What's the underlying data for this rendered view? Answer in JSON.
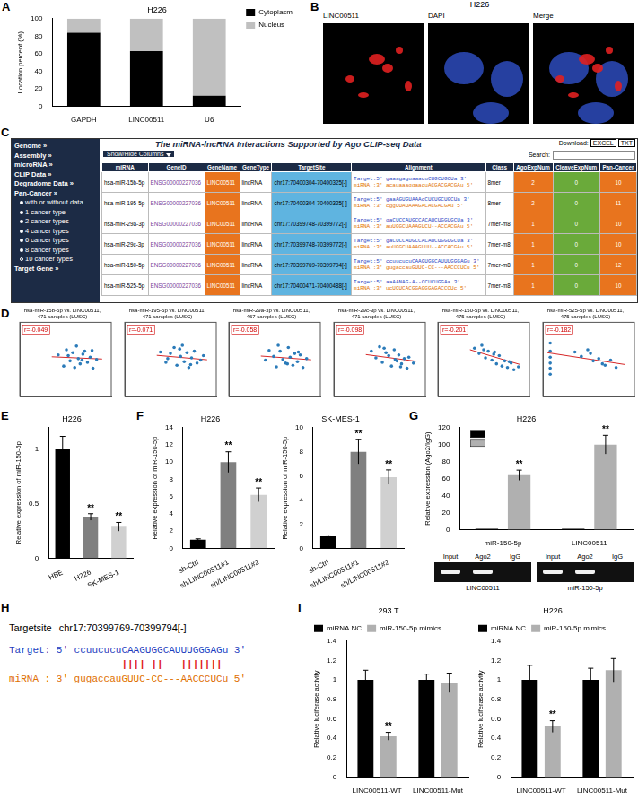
{
  "chart_data": [
    {
      "panel": "A",
      "type": "bar",
      "title": "H226",
      "stacked": true,
      "categories": [
        "GAPDH",
        "LINC00511",
        "U6"
      ],
      "series": [
        {
          "name": "Cytoplasm",
          "color": "#000000",
          "values": [
            84,
            63,
            12
          ]
        },
        {
          "name": "Nucleus",
          "color": "#c0c0c0",
          "values": [
            16,
            37,
            88
          ]
        }
      ],
      "y_label": "Location percent (%)",
      "ylim": [
        0,
        100
      ],
      "yticks": [
        0,
        20,
        40,
        60,
        80,
        100
      ],
      "legend": "right",
      "grid": false
    },
    {
      "panel": "D",
      "type": "scatter",
      "title": "hsa-miR-15b-5p vs. LINC00511, 471 samples (LUSC)",
      "annotation": "r=-0.049",
      "color": "#2b7bb9",
      "x": [
        4.2,
        4.8,
        5.1,
        5.5,
        5.8,
        6.0,
        6.2,
        6.4,
        6.6,
        6.9,
        7.1,
        7.4,
        7.7,
        8.0,
        8.4,
        5.3,
        6.8,
        7.9
      ],
      "y": [
        5.6,
        4.1,
        6.3,
        4.8,
        5.9,
        3.9,
        6.8,
        5.1,
        4.4,
        5.7,
        6.1,
        4.6,
        5.3,
        3.8,
        5.0,
        5.5,
        4.9,
        6.2
      ],
      "fit": {
        "color": "#d62728",
        "x": [
          3.5,
          9
        ],
        "y": [
          5.35,
          5.05
        ]
      },
      "xlim": [
        0,
        10
      ],
      "ylim": [
        0,
        10
      ],
      "tick_labels": false,
      "grid": false
    },
    {
      "type": "scatter",
      "title": "hsa-miR-195-5p vs. LINC00511, 471 samples (LUSC)",
      "annotation": "r=-0.071",
      "color": "#2b7bb9",
      "x": [
        3.9,
        4.5,
        5.0,
        5.4,
        5.7,
        6.1,
        6.3,
        6.5,
        6.8,
        7.0,
        7.3,
        7.6,
        7.9,
        8.3,
        4.7,
        6.0,
        7.2,
        8.6
      ],
      "y": [
        6.0,
        4.6,
        5.8,
        6.6,
        4.2,
        5.4,
        6.9,
        4.7,
        5.9,
        3.9,
        5.2,
        6.1,
        4.5,
        4.9,
        5.1,
        6.4,
        4.3,
        5.5
      ],
      "fit": {
        "color": "#d62728",
        "x": [
          3.5,
          9
        ],
        "y": [
          5.55,
          4.95
        ]
      },
      "xlim": [
        0,
        10
      ],
      "ylim": [
        0,
        10
      ],
      "tick_labels": false,
      "grid": false
    },
    {
      "type": "scatter",
      "title": "hsa-miR-29a-3p vs. LINC00511, 467 samples (LUSC)",
      "annotation": "r=-0.058",
      "color": "#2b7bb9",
      "x": [
        4.0,
        4.4,
        4.9,
        5.2,
        5.6,
        5.9,
        6.2,
        6.5,
        6.7,
        7.0,
        7.2,
        7.5,
        7.8,
        8.1,
        8.5,
        5.4,
        6.4,
        7.6
      ],
      "y": [
        4.9,
        6.2,
        5.4,
        4.0,
        6.1,
        5.0,
        4.5,
        6.6,
        5.3,
        4.2,
        5.8,
        4.7,
        5.6,
        3.9,
        5.1,
        6.9,
        4.4,
        6.0
      ],
      "fit": {
        "color": "#d62728",
        "x": [
          3.5,
          9
        ],
        "y": [
          5.45,
          4.95
        ]
      },
      "xlim": [
        0,
        10
      ],
      "ylim": [
        0,
        10
      ],
      "tick_labels": false,
      "grid": false
    },
    {
      "type": "scatter",
      "title": "hsa-miR-29c-3p vs. LINC00511, 471 samples (LUSC)",
      "annotation": "r=-0.098",
      "color": "#2b7bb9",
      "x": [
        4.1,
        4.6,
        5.0,
        5.3,
        5.7,
        6.0,
        6.3,
        6.6,
        6.9,
        7.1,
        7.4,
        7.7,
        8.0,
        8.2,
        8.7,
        5.5,
        6.7,
        7.3
      ],
      "y": [
        6.1,
        5.2,
        6.7,
        4.6,
        5.9,
        5.5,
        4.1,
        6.3,
        4.8,
        5.6,
        4.4,
        5.1,
        3.8,
        5.3,
        4.5,
        6.5,
        5.0,
        4.0
      ],
      "fit": {
        "color": "#d62728",
        "x": [
          3.5,
          9
        ],
        "y": [
          5.65,
          4.75
        ]
      },
      "xlim": [
        0,
        10
      ],
      "ylim": [
        0,
        10
      ],
      "tick_labels": false,
      "grid": false
    },
    {
      "type": "scatter",
      "title": "hsa-miR-150-5p vs. LINC00511, 475 samples (LUSC)",
      "annotation": "r=-0.201",
      "color": "#2b7bb9",
      "x": [
        4.0,
        4.5,
        4.8,
        5.2,
        5.5,
        5.9,
        6.1,
        6.4,
        6.7,
        7.0,
        7.3,
        7.6,
        8.0,
        8.3,
        8.8,
        5.0,
        6.2,
        7.8
      ],
      "y": [
        6.5,
        5.8,
        6.9,
        5.2,
        6.1,
        4.9,
        5.7,
        4.4,
        5.5,
        4.1,
        4.8,
        3.9,
        4.5,
        3.6,
        4.0,
        6.3,
        6.0,
        4.7
      ],
      "fit": {
        "color": "#d62728",
        "x": [
          3.5,
          9
        ],
        "y": [
          6.3,
          4.3
        ]
      },
      "xlim": [
        0,
        10
      ],
      "ylim": [
        0,
        10
      ],
      "tick_labels": false,
      "grid": false
    },
    {
      "type": "scatter",
      "title": "hsa-miR-525-5p vs. LINC00511, 475 samples (LUSC)",
      "annotation": "r=-0.182",
      "color": "#2b7bb9",
      "x": [
        0.8,
        0.8,
        0.8,
        0.8,
        0.8,
        0.8,
        3.5,
        4.2,
        4.9,
        5.5,
        6.1,
        6.8,
        7.4,
        8.0,
        5.2,
        6.5
      ],
      "y": [
        7.2,
        6.1,
        5.3,
        4.5,
        3.8,
        3.0,
        6.0,
        5.4,
        6.3,
        4.8,
        5.1,
        4.2,
        4.9,
        3.9,
        5.8,
        4.4
      ],
      "fit": {
        "color": "#d62728",
        "x": [
          0.5,
          9
        ],
        "y": [
          5.9,
          4.3
        ]
      },
      "xlim": [
        0,
        10
      ],
      "ylim": [
        0,
        10
      ],
      "tick_labels": false,
      "grid": false
    },
    {
      "panel": "E",
      "type": "bar",
      "title": "H226",
      "categories": [
        "HBE",
        "H226",
        "SK-MES-1"
      ],
      "values": [
        1,
        0.38,
        0.29
      ],
      "errors": [
        0.12,
        0.03,
        0.04
      ],
      "significance": [
        null,
        "**",
        "**"
      ],
      "colors": [
        "#000000",
        "#808080",
        "#d0d0d0"
      ],
      "y_label": "Relative expression of miR-150-5p",
      "ylim": [
        0,
        1.2
      ],
      "yticks": [
        0,
        0.5,
        1
      ],
      "grid": false
    },
    {
      "panel": "F",
      "type": "bar",
      "title": "H226",
      "categories": [
        "sh-Ctrl",
        "sh/LINC00511#1",
        "sh/LINC00511#2"
      ],
      "values": [
        1,
        10,
        6.2
      ],
      "errors": [
        0.1,
        1.2,
        0.8
      ],
      "significance": [
        null,
        "**",
        "**"
      ],
      "colors": [
        "#000000",
        "#808080",
        "#d0d0d0"
      ],
      "y_label": "Relative expression of miR-150-5p",
      "ylim": [
        0,
        14
      ],
      "yticks": [
        0,
        2,
        4,
        6,
        8,
        10,
        12,
        14
      ],
      "grid": false
    },
    {
      "type": "bar",
      "title": "SK-MES-1",
      "categories": [
        "sh-Ctrl",
        "sh/LINC00511#1",
        "sh/LINC00511#2"
      ],
      "values": [
        1,
        8,
        5.9
      ],
      "errors": [
        0.1,
        1,
        0.6
      ],
      "significance": [
        null,
        "**",
        "**"
      ],
      "colors": [
        "#000000",
        "#808080",
        "#d0d0d0"
      ],
      "y_label": "Relative expression of miR-150-5p",
      "ylim": [
        0,
        10
      ],
      "yticks": [
        0,
        2,
        4,
        6,
        8,
        10
      ],
      "grid": false
    },
    {
      "panel": "G",
      "type": "bar",
      "title": "H226",
      "categories": [
        "miR-150-5p",
        "LINC00511"
      ],
      "series": [
        {
          "color": "#000000",
          "values": [
            1,
            1
          ]
        },
        {
          "color": "#b0b0b0",
          "values": [
            64,
            100
          ],
          "errors": [
            6,
            11
          ],
          "significance": [
            "**",
            "**"
          ]
        }
      ],
      "y_label": "Relative expression (Ago2/IgG)",
      "ylim": [
        0,
        120
      ],
      "yticks": [
        0,
        20,
        40,
        60,
        80,
        100,
        120
      ],
      "legend": "top",
      "grid": false
    },
    {
      "panel": "I",
      "type": "bar",
      "title": "293 T",
      "categories": [
        "LINC00511-WT",
        "LINC00511-Mut"
      ],
      "series": [
        {
          "name": "miRNA NC",
          "color": "#000000",
          "values": [
            1,
            1
          ],
          "errors": [
            0.1,
            0.06
          ]
        },
        {
          "name": "miR-150-5p mimics",
          "color": "#b0b0b0",
          "values": [
            0.42,
            0.97
          ],
          "errors": [
            0.04,
            0.1
          ],
          "significance": [
            "**",
            null
          ]
        }
      ],
      "y_label": "Relative luciferase activity",
      "ylim": [
        0,
        1.4
      ],
      "yticks": [
        0,
        0.2,
        0.4,
        0.6,
        0.8,
        1,
        1.2,
        1.4
      ],
      "legend": "top",
      "grid": false
    },
    {
      "type": "bar",
      "title": "H226",
      "categories": [
        "LINC00511-WT",
        "LINC00511-Mut"
      ],
      "series": [
        {
          "name": "miRNA NC",
          "color": "#000000",
          "values": [
            1,
            1
          ],
          "errors": [
            0.15,
            0.12
          ]
        },
        {
          "name": "miR-150-5p mimics",
          "color": "#b0b0b0",
          "values": [
            0.52,
            1.1
          ],
          "errors": [
            0.06,
            0.12
          ],
          "significance": [
            "**",
            null
          ]
        }
      ],
      "y_label": "Relative luciferase activity",
      "ylim": [
        0,
        1.4
      ],
      "yticks": [
        0,
        0.2,
        0.4,
        0.6,
        0.8,
        1,
        1.2,
        1.4
      ],
      "legend": "top",
      "grid": false
    }
  ],
  "panel_b": {
    "panel": "B",
    "title": "H226",
    "images": [
      "LINC00511",
      "DAPI",
      "Merge"
    ]
  },
  "panel_c": {
    "panel": "C",
    "sidebar": {
      "items": [
        "Genome »",
        "Assembly »",
        "microRNA »",
        "CLIP Data »",
        "Degradome Data »",
        "Pan-Cancer »"
      ],
      "sub": [
        "with or without data",
        "1 cancer type",
        "2 cancer types",
        "4 cancer types",
        "6 cancer types",
        "8 cancer types",
        "10 cancer types"
      ],
      "last": "Target Gene »"
    },
    "title": "The miRNA-lncRNA Interactions Supported by Ago CLIP-seq Data",
    "download": "Download:",
    "formats": [
      "EXCEL",
      "TXT"
    ],
    "show_hide": "Show/Hide Columns",
    "search": "Search:",
    "columns": [
      "miRNA",
      "GeneID",
      "GeneName",
      "GeneType",
      "TargetSite",
      "Alignment",
      "Class",
      "AgoExpNum",
      "CleaveExpNum",
      "Pan-Cancer"
    ],
    "rows": [
      [
        "hsa-miR-15b-5p",
        "ENSG00000227036",
        "LINC00511",
        "lincRNA",
        "chr17:70400304-70400325[-]",
        [
          "Target:5' gaaagaguaaacuCUGCUGCUa 3'",
          "miRNA :3' acauaaaggaacuACGACGACGAu 5'"
        ],
        "8mer",
        2,
        0,
        10
      ],
      [
        "hsa-miR-195-5p",
        "ENSG00000227036",
        "LINC00511",
        "lincRNA",
        "chr17:70400304-70400325[-]",
        [
          "Target:5' gaaAGUGUAAAcCUCUGCUGCUa 3'",
          "miRNA :3' cggUUAUAAAGACACGACGAu 5'"
        ],
        "8mer",
        2,
        0,
        11
      ],
      [
        "hsa-miR-29a-3p",
        "ENSG00000227036",
        "LINC00511",
        "lincRNA",
        "chr17:70399748-70399772[-]",
        [
          "Target:5' gaCUCCAUGCCACAUCUGGUGCUa 3'",
          "miRNA :3' auUGGCUAAAGUCU--ACCACGAu 5'"
        ],
        "7mer-m8",
        1,
        0,
        10
      ],
      [
        "hsa-miR-29c-3p",
        "ENSG00000227036",
        "LINC00511",
        "lincRNA",
        "chr17:70399748-70399772[-]",
        [
          "Target:5' gaCUCCAUGCCACAUCUGGUGCUa 3'",
          "miRNA :3' auUGGCUAAAGUUU--ACCACGAu 5'"
        ],
        "7mer-m8",
        1,
        0,
        10
      ],
      [
        "hsa-miR-150-5p",
        "ENSG00000227036",
        "LINC00511",
        "lincRNA",
        "chr17:70399769-70399794[-]",
        [
          "Target:5' ccuucucuCAAGUGGCAUUUGGGAGu 3'",
          "miRNA :3' gugaccauGUUC-CC---AACCCUCu 5'"
        ],
        "7mer-m8",
        1,
        0,
        12
      ],
      [
        "hsa-miR-525-5p",
        "ENSG00000227036",
        "LINC00511",
        "lincRNA",
        "chr17:70400471-70400488[-]",
        [
          "Target:5' aaAANAG-A--CCUCUGGAa 3'",
          "miRNA :3' ucUCUCACGGAGGGAGACCCUc 5'"
        ],
        "7mer-m8",
        1,
        0,
        10
      ]
    ]
  },
  "gel": {
    "lanes": [
      "Input",
      "Ago2",
      "IgG"
    ],
    "gels": [
      {
        "name": "LINC00511",
        "bands": [
          true,
          true,
          false
        ]
      },
      {
        "name": "miR-150-5p",
        "bands": [
          true,
          true,
          false
        ]
      }
    ]
  },
  "panel_h": {
    "panel": "H",
    "label": "Targetsite",
    "site": "chr17:70399769-70399794[-]",
    "target": {
      "prefix": "Target: 5' ",
      "seq": "ccuucucuCAAGUGGCAUUUGGGAGu",
      "suffix": " 3'"
    },
    "pairing": "        |||| ||   ||||||| ",
    "mirna": {
      "prefix": "miRNA : 3' ",
      "seq": "gugaccauGUUC-CC---AACCCUCu",
      "suffix": " 5'"
    }
  }
}
